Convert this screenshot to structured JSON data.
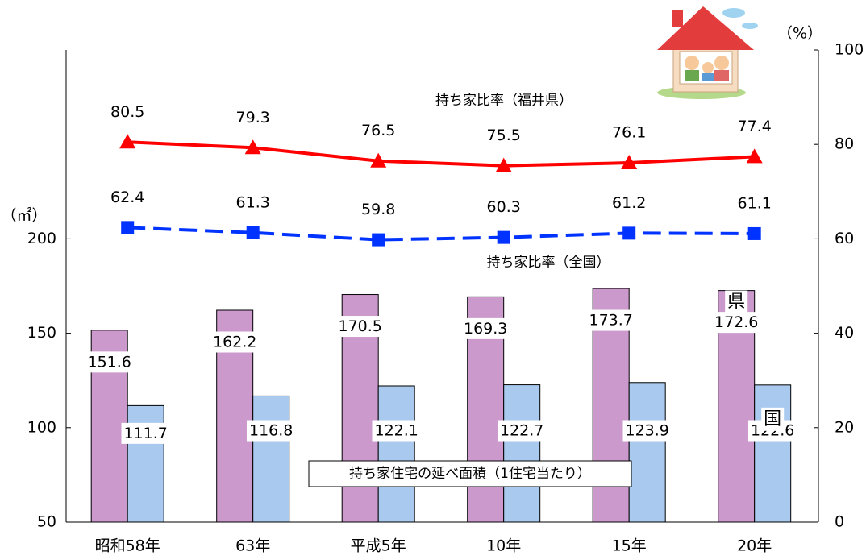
{
  "chart_data": {
    "type": "bar",
    "annotation": "持ち家住宅の延べ面積（1住宅当たり）",
    "y_unit": "（㎡）",
    "y2_unit": "（%）",
    "categories": [
      "昭和58年",
      "63年",
      "平成5年",
      "10年",
      "15年",
      "20年"
    ],
    "ylim": [
      50,
      300
    ],
    "yticks": [
      50,
      100,
      150,
      200
    ],
    "y2lim": [
      0,
      100
    ],
    "y2ticks": [
      0,
      20,
      40,
      60,
      80,
      100
    ],
    "series": [
      {
        "name": "県",
        "type": "bar",
        "color": "#cc99cc",
        "values": [
          151.6,
          162.2,
          170.5,
          169.3,
          173.7,
          172.6
        ]
      },
      {
        "name": "国",
        "type": "bar",
        "color": "#a9c9ee",
        "values": [
          111.7,
          116.8,
          122.1,
          122.7,
          123.9,
          122.6
        ]
      },
      {
        "name": "持ち家比率（福井県）",
        "type": "line",
        "axis": "y2",
        "color": "#ff0000",
        "marker": "triangle",
        "line_style": "solid",
        "values": [
          80.5,
          79.3,
          76.5,
          75.5,
          76.1,
          77.4
        ]
      },
      {
        "name": "持ち家比率（全国）",
        "type": "line",
        "axis": "y2",
        "color": "#0033ff",
        "marker": "square",
        "line_style": "dashed",
        "values": [
          62.4,
          61.3,
          59.8,
          60.3,
          61.2,
          61.1
        ]
      }
    ]
  }
}
